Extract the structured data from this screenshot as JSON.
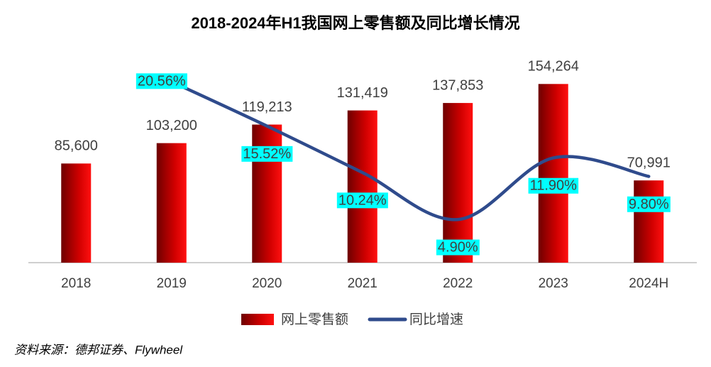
{
  "chart_data": {
    "type": "bar+line",
    "title": "2018-2024年H1我国网上零售额及同比增长情况",
    "categories": [
      "2018",
      "2019",
      "2020",
      "2021",
      "2022",
      "2023",
      "2024H"
    ],
    "series": [
      {
        "name": "网上零售额",
        "type": "bar",
        "color": "#c00000",
        "values": [
          85600,
          103200,
          119213,
          131419,
          137853,
          154264,
          70991
        ],
        "value_labels": [
          "85,600",
          "103,200",
          "119,213",
          "131,419",
          "137,853",
          "154,264",
          "70,991"
        ]
      },
      {
        "name": "同比增速",
        "type": "line",
        "axis": "y2",
        "color": "#2f4b8c",
        "values": [
          null,
          20.56,
          15.52,
          10.24,
          4.9,
          11.9,
          9.8
        ],
        "value_labels": [
          null,
          "20.56%",
          "15.52%",
          "10.24%",
          "4.90%",
          "11.90%",
          "9.80%"
        ]
      }
    ],
    "ylim": [
      0,
      190000
    ],
    "y2lim": [
      0,
      25
    ],
    "source": "资料来源：德邦证券、Flywheel"
  }
}
